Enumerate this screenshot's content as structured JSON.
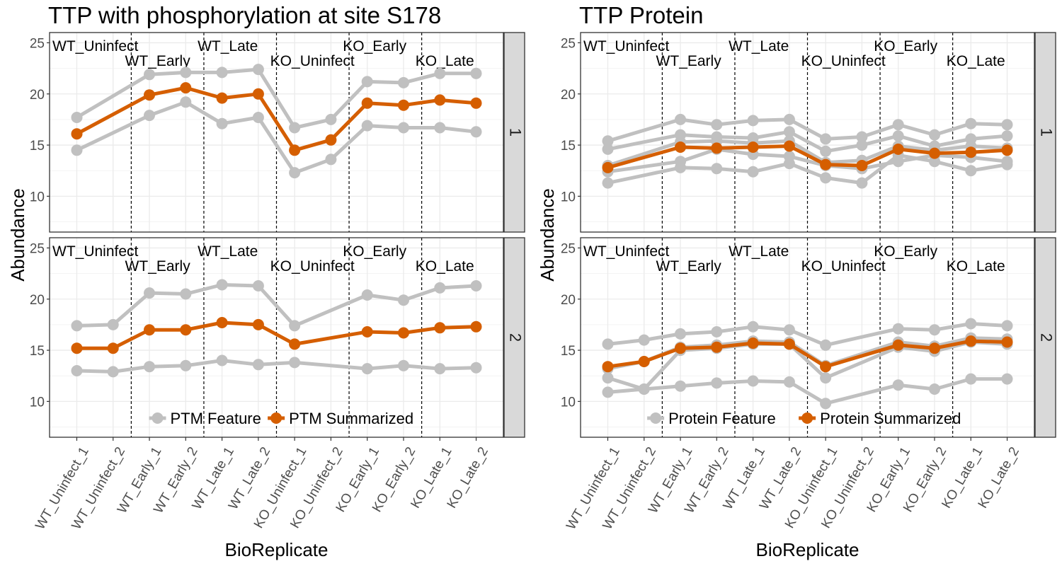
{
  "colors": {
    "feature": "#c0c0c0",
    "summarized": "#d55e00",
    "panel_border": "#333333",
    "strip_fill": "#d9d9d9",
    "grid_major": "#ebebeb",
    "grid_minor": "#f3f3f3"
  },
  "chart_data": [
    {
      "type": "line",
      "title": "TTP with phosphorylation at site S178",
      "xlabel": "BioReplicate",
      "ylabel": "Abundance",
      "ylim": [
        6.5,
        26
      ],
      "yticks": [
        10,
        15,
        20,
        25
      ],
      "grid": true,
      "legend_position": "bottom of lower facet",
      "categories": [
        "WT_Uninfect_1",
        "WT_Uninfect_2",
        "WT_Early_1",
        "WT_Early_2",
        "WT_Late_1",
        "WT_Late_2",
        "KO_Uninfect_1",
        "KO_Uninfect_2",
        "KO_Early_1",
        "KO_Early_2",
        "KO_Late_1",
        "KO_Late_2"
      ],
      "conditions": [
        "WT_Uninfect",
        "WT_Early",
        "WT_Late",
        "KO_Uninfect",
        "KO_Early",
        "KO_Late"
      ],
      "legend": [
        {
          "label": "PTM Feature",
          "color_key": "feature"
        },
        {
          "label": "PTM Summarized",
          "color_key": "summarized"
        }
      ],
      "facets": [
        {
          "strip": "1",
          "feature_series": [
            [
              17.7,
              null,
              21.9,
              22.1,
              22.1,
              22.4,
              16.7,
              17.5,
              21.2,
              21.1,
              22.0,
              22.0
            ],
            [
              14.5,
              null,
              17.9,
              19.2,
              17.1,
              17.7,
              12.3,
              13.6,
              16.9,
              16.7,
              16.7,
              16.3
            ]
          ],
          "summarized": [
            16.1,
            null,
            19.9,
            20.6,
            19.6,
            20.0,
            14.5,
            15.5,
            19.1,
            18.9,
            19.4,
            19.1
          ]
        },
        {
          "strip": "2",
          "feature_series": [
            [
              17.4,
              17.5,
              20.6,
              20.5,
              21.4,
              21.3,
              17.4,
              null,
              20.4,
              19.9,
              21.1,
              21.3
            ],
            [
              13.0,
              12.9,
              13.4,
              13.5,
              14.0,
              13.6,
              13.8,
              null,
              13.2,
              13.5,
              13.2,
              13.3
            ]
          ],
          "summarized": [
            15.2,
            15.2,
            17.0,
            17.0,
            17.7,
            17.5,
            15.6,
            null,
            16.8,
            16.7,
            17.2,
            17.3
          ]
        }
      ]
    },
    {
      "type": "line",
      "title": "TTP Protein",
      "xlabel": "BioReplicate",
      "ylabel": "Abundance",
      "ylim": [
        6.5,
        26
      ],
      "yticks": [
        10,
        15,
        20,
        25
      ],
      "grid": true,
      "legend_position": "bottom of lower facet",
      "categories": [
        "WT_Uninfect_1",
        "WT_Uninfect_2",
        "WT_Early_1",
        "WT_Early_2",
        "WT_Late_1",
        "WT_Late_2",
        "KO_Uninfect_1",
        "KO_Uninfect_2",
        "KO_Early_1",
        "KO_Early_2",
        "KO_Late_1",
        "KO_Late_2"
      ],
      "conditions": [
        "WT_Uninfect",
        "WT_Early",
        "WT_Late",
        "KO_Uninfect",
        "KO_Early",
        "KO_Late"
      ],
      "legend": [
        {
          "label": "Protein Feature",
          "color_key": "feature"
        },
        {
          "label": "Protein Summarized",
          "color_key": "summarized"
        }
      ],
      "facets": [
        {
          "strip": "1",
          "feature_series": [
            [
              15.4,
              null,
              17.5,
              17.0,
              17.4,
              17.5,
              15.6,
              15.8,
              17.0,
              16.0,
              17.1,
              17.0
            ],
            [
              14.6,
              null,
              16.0,
              15.8,
              15.7,
              16.3,
              14.4,
              15.0,
              15.9,
              14.9,
              15.6,
              15.9
            ],
            [
              13.0,
              null,
              15.3,
              15.4,
              15.2,
              15.4,
              13.3,
              13.5,
              14.9,
              14.5,
              14.9,
              14.7
            ],
            [
              12.4,
              null,
              13.4,
              14.6,
              14.1,
              13.9,
              13.0,
              12.7,
              13.4,
              14.0,
              13.8,
              13.4
            ],
            [
              11.3,
              null,
              12.8,
              12.7,
              12.4,
              13.2,
              11.8,
              11.3,
              14.0,
              13.4,
              12.5,
              13.1
            ]
          ],
          "summarized": [
            12.8,
            null,
            14.8,
            14.7,
            14.8,
            14.9,
            13.1,
            13.0,
            14.6,
            14.2,
            14.3,
            14.5
          ]
        },
        {
          "strip": "2",
          "feature_series": [
            [
              15.6,
              16.0,
              16.6,
              16.8,
              17.3,
              17.0,
              15.5,
              null,
              17.1,
              17.0,
              17.6,
              17.4
            ],
            [
              13.2,
              13.9,
              15.3,
              15.5,
              15.9,
              15.8,
              13.5,
              null,
              15.8,
              15.4,
              16.2,
              16.1
            ],
            [
              12.3,
              11.2,
              15.0,
              15.2,
              15.6,
              15.6,
              12.3,
              null,
              15.3,
              14.9,
              15.8,
              15.6
            ],
            [
              10.9,
              11.2,
              11.5,
              11.8,
              12.0,
              11.9,
              9.8,
              null,
              11.6,
              11.2,
              12.2,
              12.2
            ]
          ],
          "summarized": [
            13.4,
            13.9,
            15.2,
            15.3,
            15.7,
            15.6,
            13.4,
            null,
            15.5,
            15.2,
            15.9,
            15.8
          ]
        }
      ]
    }
  ]
}
